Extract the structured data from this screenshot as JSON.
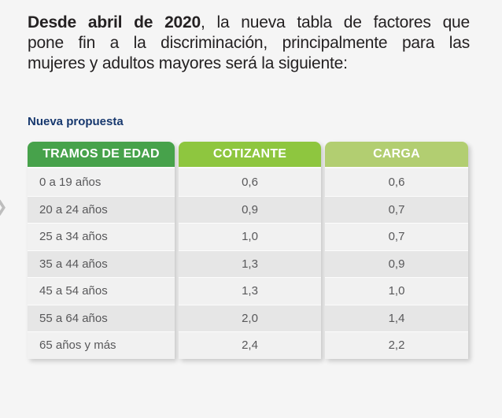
{
  "heading": {
    "line1_bold": "Desde abril de 2020",
    "line1_rest": ", la nueva tabla de factores que",
    "line2": "pone fin a la discriminación, principalmente para las",
    "line3": "mujeres y adultos mayores será la siguiente:"
  },
  "table": {
    "label": "Nueva propuesta",
    "columns": [
      {
        "header": "TRAMOS DE EDAD",
        "color": "#47a24b",
        "values": [
          "0 a 19 años",
          "20 a 24 años",
          "25 a 34 años",
          "35 a 44 años",
          "45 a 54 años",
          "55 a 64 años",
          "65 años y más"
        ]
      },
      {
        "header": "COTIZANTE",
        "color": "#8ec63f",
        "values": [
          "0,6",
          "0,9",
          "1,0",
          "1,3",
          "1,3",
          "2,0",
          "2,4"
        ]
      },
      {
        "header": "CARGA",
        "color": "#b2ce71",
        "values": [
          "0,6",
          "0,7",
          "0,7",
          "0,9",
          "1,0",
          "1,4",
          "2,2"
        ]
      }
    ]
  },
  "nav": {
    "carousel_arrow": "❯"
  },
  "colors": {
    "background": "#f5f5f5",
    "label_navy": "#17386e",
    "header_green_dark": "#47a24b",
    "header_green_mid": "#8ec63f",
    "header_green_light": "#b2ce71"
  },
  "chart_data": {
    "type": "table",
    "title": "Nueva propuesta",
    "columns": [
      "TRAMOS DE EDAD",
      "COTIZANTE",
      "CARGA"
    ],
    "rows": [
      [
        "0 a 19 años",
        "0,6",
        "0,6"
      ],
      [
        "20 a 24 años",
        "0,9",
        "0,7"
      ],
      [
        "25 a 34 años",
        "1,0",
        "0,7"
      ],
      [
        "35 a 44 años",
        "1,3",
        "0,9"
      ],
      [
        "45 a 54 años",
        "1,3",
        "1,0"
      ],
      [
        "55 a 64 años",
        "2,0",
        "1,4"
      ],
      [
        "65 años y más",
        "2,4",
        "2,2"
      ]
    ]
  }
}
